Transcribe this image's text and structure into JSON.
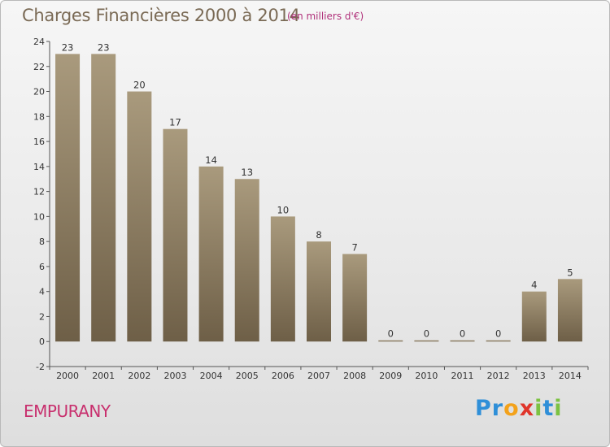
{
  "header": {
    "title": "Charges Financières 2000 à 2014",
    "subtitle": "(en milliers d'€)"
  },
  "footer": {
    "commune": "EMPURANY",
    "logo_letters": [
      {
        "ch": "P",
        "color": "#2f8fd8"
      },
      {
        "ch": "r",
        "color": "#2f8fd8"
      },
      {
        "ch": "o",
        "color": "#f3a21b"
      },
      {
        "ch": "x",
        "color": "#e0352b"
      },
      {
        "ch": "i",
        "color": "#7cc242"
      },
      {
        "ch": "t",
        "color": "#2f8fd8"
      },
      {
        "ch": "i",
        "color": "#7cc242"
      }
    ]
  },
  "chart_data": {
    "type": "bar",
    "title": "Charges Financières 2000 à 2014",
    "subtitle": "(en milliers d'€)",
    "categories": [
      "2000",
      "2001",
      "2002",
      "2003",
      "2004",
      "2005",
      "2006",
      "2007",
      "2008",
      "2009",
      "2010",
      "2011",
      "2012",
      "2013",
      "2014"
    ],
    "values": [
      23,
      23,
      20,
      17,
      14,
      13,
      10,
      8,
      7,
      0,
      0,
      0,
      0,
      4,
      5
    ],
    "ylim": [
      -2,
      24
    ],
    "yticks": [
      -2,
      0,
      2,
      4,
      6,
      8,
      10,
      12,
      14,
      16,
      18,
      20,
      22,
      24
    ],
    "grid": false,
    "bar_color_top": "#a99a7d",
    "bar_color_bottom": "#6e5f47"
  }
}
